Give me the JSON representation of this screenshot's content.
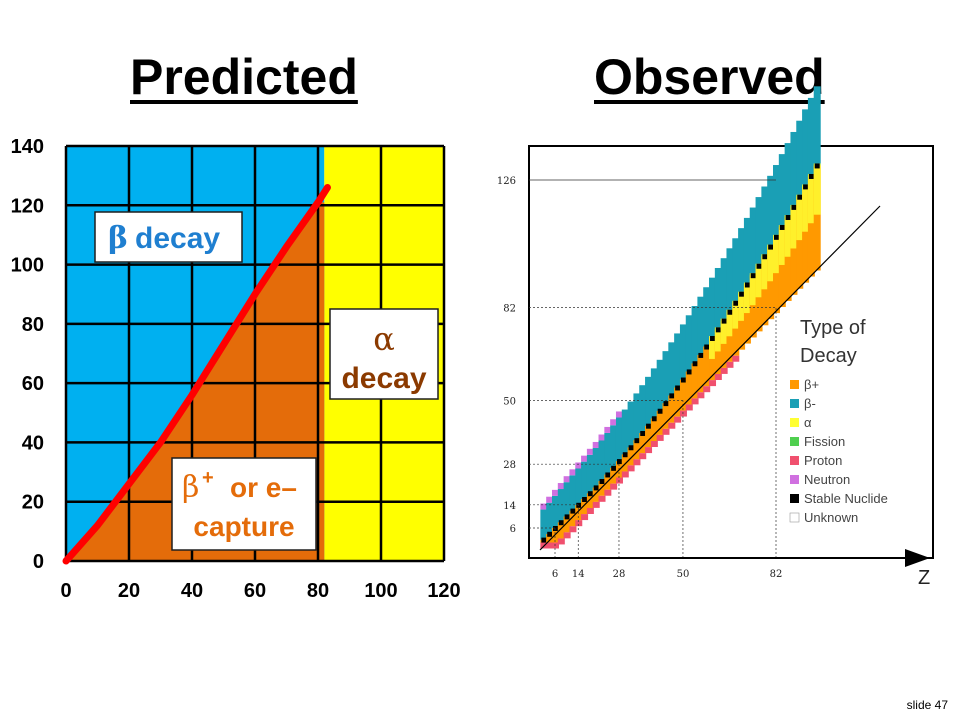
{
  "slide": {
    "left_title": "Predicted",
    "right_title": "Observed",
    "slide_number": "slide 47"
  },
  "chart_data": [
    {
      "type": "area",
      "title": "Predicted",
      "x_ticks": [
        0,
        20,
        40,
        60,
        80,
        100,
        120
      ],
      "y_ticks": [
        0,
        20,
        40,
        60,
        80,
        100,
        120,
        140
      ],
      "xlim": [
        0,
        120
      ],
      "ylim": [
        0,
        140
      ],
      "grid": true,
      "alpha_boundary_z": 82,
      "regions": [
        {
          "label": "β decay",
          "color": "#00b0f0"
        },
        {
          "label_symbol": "α",
          "label": "decay",
          "color": "#ffff00"
        },
        {
          "label_symbol": "β+",
          "label": "or e–",
          "label2": "capture",
          "color": "#e46c0a"
        }
      ],
      "stability_line": {
        "color": "#ff0000",
        "x": [
          0,
          10,
          20,
          30,
          40,
          50,
          60,
          70,
          80,
          83
        ],
        "y": [
          0,
          12,
          26,
          40,
          56,
          73,
          90,
          106,
          121,
          126
        ]
      }
    },
    {
      "type": "scatter",
      "title": "Observed",
      "xlabel": "Z",
      "x_ticks": [
        6,
        14,
        28,
        50,
        82
      ],
      "y_ticks": [
        6,
        14,
        28,
        50,
        82,
        126
      ],
      "legend_title_line1": "Type of",
      "legend_title_line2": "Decay",
      "legend": [
        {
          "label": "β+",
          "color": "#ff9900"
        },
        {
          "label": "β-",
          "color": "#1a9fb5"
        },
        {
          "label": "α",
          "color": "#ffff33"
        },
        {
          "label": "Fission",
          "color": "#4fcf4f"
        },
        {
          "label": "Proton",
          "color": "#f0506e"
        },
        {
          "label": "Neutron",
          "color": "#d070e0"
        },
        {
          "label": "Stable Nuclide",
          "color": "#000000"
        },
        {
          "label": "Unknown",
          "color": "#ffffff"
        }
      ]
    }
  ]
}
